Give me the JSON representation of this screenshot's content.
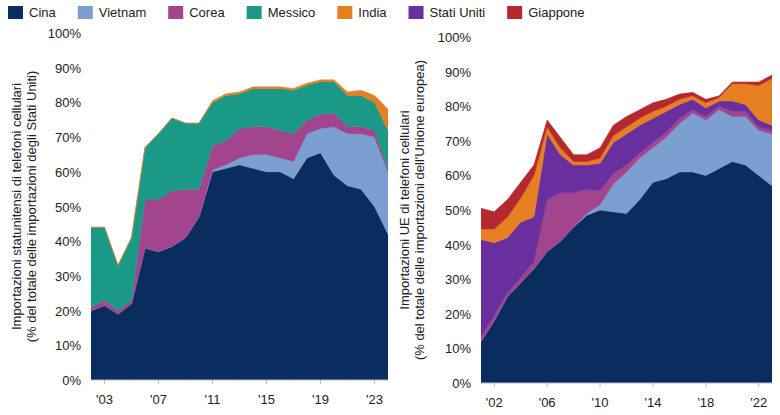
{
  "chart_data": [
    {
      "type": "area",
      "stacked": true,
      "grid": false,
      "legend": "top",
      "y_label": [
        "Importazioni statunitensi di telefoni cellulari",
        "(% del totale delle importazioni degli Stati Uniti)"
      ],
      "x": [
        2002,
        2003,
        2004,
        2005,
        2006,
        2007,
        2008,
        2009,
        2010,
        2011,
        2012,
        2013,
        2014,
        2015,
        2016,
        2017,
        2018,
        2019,
        2020,
        2021,
        2022,
        2023,
        2024
      ],
      "xlim": [
        2002,
        2024
      ],
      "xticks": [
        {
          "value": 2003,
          "label": "'03"
        },
        {
          "value": 2007,
          "label": "'07"
        },
        {
          "value": 2011,
          "label": "'11"
        },
        {
          "value": 2015,
          "label": "'15"
        },
        {
          "value": 2019,
          "label": "'19"
        },
        {
          "value": 2023,
          "label": "'23"
        }
      ],
      "ylim": [
        0,
        100
      ],
      "yticks": [
        {
          "value": 0,
          "label": "0%"
        },
        {
          "value": 10,
          "label": "10%"
        },
        {
          "value": 20,
          "label": "20%"
        },
        {
          "value": 30,
          "label": "30%"
        },
        {
          "value": 40,
          "label": "40%"
        },
        {
          "value": 50,
          "label": "50%"
        },
        {
          "value": 60,
          "label": "60%"
        },
        {
          "value": 70,
          "label": "70%"
        },
        {
          "value": 80,
          "label": "80%"
        },
        {
          "value": 90,
          "label": "90%"
        },
        {
          "value": 100,
          "label": "100%"
        }
      ],
      "series": [
        {
          "name": "Cina",
          "color": "#0b2c5f",
          "values": [
            20,
            21.5,
            19,
            22,
            38,
            37,
            38.5,
            41,
            47,
            60,
            61,
            62,
            61,
            60,
            60,
            58,
            64,
            65.5,
            59,
            56,
            55,
            50,
            42
          ]
        },
        {
          "name": "Vietnam",
          "color": "#7b9fd1",
          "values": [
            0,
            0,
            0,
            0,
            0,
            0,
            0,
            0,
            0,
            0.5,
            1,
            2,
            4,
            5,
            4,
            5,
            7,
            7,
            14,
            15,
            16,
            20,
            18
          ]
        },
        {
          "name": "Corea",
          "color": "#a2448e",
          "values": [
            1,
            1.5,
            1,
            1,
            14,
            15,
            16,
            14,
            8,
            7,
            7,
            8.5,
            8,
            8,
            8,
            8,
            4,
            4,
            4,
            2,
            2,
            2,
            1
          ]
        },
        {
          "name": "Messico",
          "color": "#1a9a86",
          "values": [
            23,
            21,
            13,
            18,
            15,
            19,
            21,
            19,
            19,
            12.5,
            13,
            10,
            11,
            11,
            12,
            12.5,
            10,
            9.5,
            9,
            9,
            9,
            8,
            11
          ]
        },
        {
          "name": "India",
          "color": "#e67e22",
          "values": [
            0,
            0,
            0,
            0,
            0,
            0,
            0,
            0,
            0,
            0.5,
            0.5,
            0.5,
            0.5,
            0.5,
            0.5,
            0.5,
            0.5,
            0.5,
            0.5,
            1,
            1.5,
            2,
            6
          ]
        }
      ]
    },
    {
      "type": "area",
      "stacked": true,
      "grid": false,
      "y_label": [
        "Importazioni UE di telefoni cellulari",
        "(% del totale delle importazioni dell'Unione europea)"
      ],
      "x": [
        2001,
        2002,
        2003,
        2004,
        2005,
        2006,
        2007,
        2008,
        2009,
        2010,
        2011,
        2012,
        2013,
        2014,
        2015,
        2016,
        2017,
        2018,
        2019,
        2020,
        2021,
        2022,
        2023
      ],
      "xlim": [
        2001,
        2023
      ],
      "xticks": [
        {
          "value": 2002,
          "label": "'02"
        },
        {
          "value": 2006,
          "label": "'06"
        },
        {
          "value": 2010,
          "label": "'10"
        },
        {
          "value": 2014,
          "label": "'14"
        },
        {
          "value": 2018,
          "label": "'18"
        },
        {
          "value": 2022,
          "label": "'22"
        }
      ],
      "ylim": [
        0,
        100
      ],
      "yticks": [
        {
          "value": 0,
          "label": "0%"
        },
        {
          "value": 10,
          "label": "10%"
        },
        {
          "value": 20,
          "label": "20%"
        },
        {
          "value": 30,
          "label": "30%"
        },
        {
          "value": 40,
          "label": "40%"
        },
        {
          "value": 50,
          "label": "50%"
        },
        {
          "value": 60,
          "label": "60%"
        },
        {
          "value": 70,
          "label": "70%"
        },
        {
          "value": 80,
          "label": "80%"
        },
        {
          "value": 90,
          "label": "90%"
        },
        {
          "value": 100,
          "label": "100%"
        }
      ],
      "series": [
        {
          "name": "Cina",
          "color": "#0b2c5f",
          "values": [
            12,
            18,
            25,
            29,
            33,
            38,
            41,
            45,
            48.5,
            50,
            49.5,
            49,
            53,
            58,
            59,
            61,
            61,
            60,
            62,
            64,
            63,
            60,
            57
          ]
        },
        {
          "name": "Vietnam",
          "color": "#7b9fd1",
          "values": [
            0,
            0,
            0,
            0,
            0,
            0,
            0,
            0,
            0.5,
            1.5,
            8,
            12,
            12,
            10,
            12,
            14,
            17,
            16,
            17,
            13,
            14,
            13,
            15
          ]
        },
        {
          "name": "Corea",
          "color": "#a2448e",
          "values": [
            1.5,
            1.5,
            1,
            1.5,
            2,
            15,
            14,
            10,
            7,
            4,
            3,
            2,
            1.5,
            1.5,
            1.5,
            1.5,
            1,
            1,
            1,
            1.5,
            1.5,
            1,
            1
          ]
        },
        {
          "name": "Stati Uniti",
          "color": "#6a2f9e",
          "values": [
            28,
            21,
            16,
            16,
            13,
            19,
            11,
            8,
            7,
            8,
            9,
            9,
            8,
            7,
            6,
            4,
            3,
            2.5,
            1.5,
            3,
            2,
            2,
            1.5
          ]
        },
        {
          "name": "India",
          "color": "#e67e22",
          "values": [
            3,
            4,
            6,
            7,
            12,
            2,
            2,
            1,
            1,
            1.5,
            2,
            2,
            2,
            2,
            1.5,
            1.5,
            1,
            1.5,
            1,
            5,
            6,
            10,
            13.5
          ]
        },
        {
          "name": "Giappone",
          "color": "#b5282e",
          "values": [
            6,
            5,
            5,
            4.5,
            3,
            2,
            3,
            2,
            2,
            3,
            3,
            3,
            2.5,
            2.5,
            2,
            1.5,
            1,
            1,
            0.5,
            0.5,
            0.5,
            1,
            1
          ]
        }
      ]
    }
  ]
}
